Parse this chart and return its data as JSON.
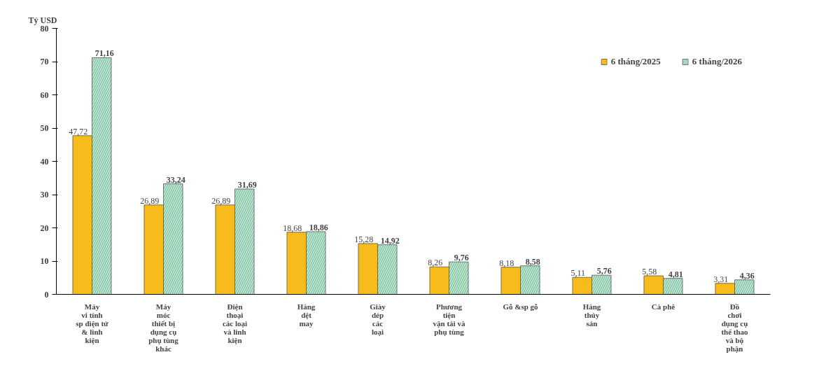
{
  "chart_data": {
    "type": "bar",
    "ylabel": "Tỷ USD",
    "categories": [
      "Máy\nvi tính\nsp điện tử\n& linh\nkiện",
      "Máy\nmóc\nthiết bị\ndụng cụ\nphụ tùng\nkhác",
      "Điện\nthoại\ncác loại\nvà linh\nkiện",
      "Hàng\ndệt\nmay",
      "Giày\ndép\ncác\nloại",
      "Phương\ntiện\nvận tải và\nphụ tùng",
      "Gỗ &sp gỗ",
      "Hàng\nthủy\nsản",
      "Cà phê",
      "Đồ\nchơi\ndụng cụ\nthể thao\nvà bộ\nphận"
    ],
    "series": [
      {
        "name": "6 tháng/2025",
        "color": "#f7bb1c",
        "values": [
          47.72,
          26.89,
          26.89,
          18.68,
          15.28,
          8.26,
          8.18,
          5.11,
          5.58,
          3.31
        ],
        "value_labels": [
          "47,72",
          "26,89",
          "26,89",
          "18,68",
          "15,28",
          "8,26",
          "8,18",
          "5,11",
          "5,58",
          "3,31"
        ]
      },
      {
        "name": "6 tháng/2026",
        "color": "#bfe8cf",
        "values": [
          71.16,
          33.24,
          31.69,
          18.86,
          14.92,
          9.76,
          8.58,
          5.76,
          4.81,
          4.36
        ],
        "value_labels": [
          "71,16",
          "33,24",
          "31,69",
          "18,86",
          "14,92",
          "9,76",
          "8,58",
          "5,76",
          "4,81",
          "4,36"
        ]
      }
    ],
    "ylim": [
      0,
      80
    ],
    "yticks": [
      0,
      10,
      20,
      30,
      40,
      50,
      60,
      70,
      80
    ],
    "grid": false,
    "legend": "top right"
  }
}
